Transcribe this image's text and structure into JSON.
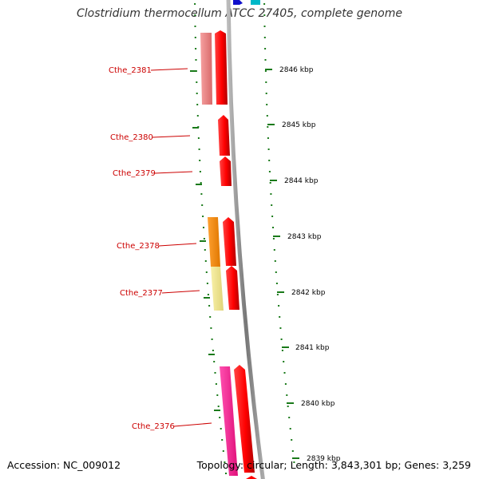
{
  "title": "Clostridium thermocellum ATCC 27405, complete genome",
  "footer": {
    "accession": "Accession: NC_009012",
    "summary": "Topology: circular; Length: 3,843,301 bp; Genes: 3,259"
  },
  "ruler": {
    "unit": "kbp",
    "ticks": [
      {
        "label": "2846 kbp"
      },
      {
        "label": "2845 kbp"
      },
      {
        "label": "2844 kbp"
      },
      {
        "label": "2843 kbp"
      },
      {
        "label": "2842 kbp"
      },
      {
        "label": "2841 kbp"
      },
      {
        "label": "2840 kbp"
      },
      {
        "label": "2839 kbp"
      }
    ]
  },
  "genes": [
    {
      "label": "Cthe_2381"
    },
    {
      "label": "Cthe_2380"
    },
    {
      "label": "Cthe_2379"
    },
    {
      "label": "Cthe_2378"
    },
    {
      "label": "Cthe_2377"
    },
    {
      "label": "Cthe_2376"
    }
  ],
  "colors": {
    "cds": "#ff0000",
    "label": "#cc0000",
    "ruler_dots": "#1a7a1a",
    "backbone": "#888888",
    "cog_salmon": "#f08080",
    "cog_orange": "#ff8c00",
    "cog_khaki": "#f0e68c",
    "cog_pink": "#ff1493"
  }
}
